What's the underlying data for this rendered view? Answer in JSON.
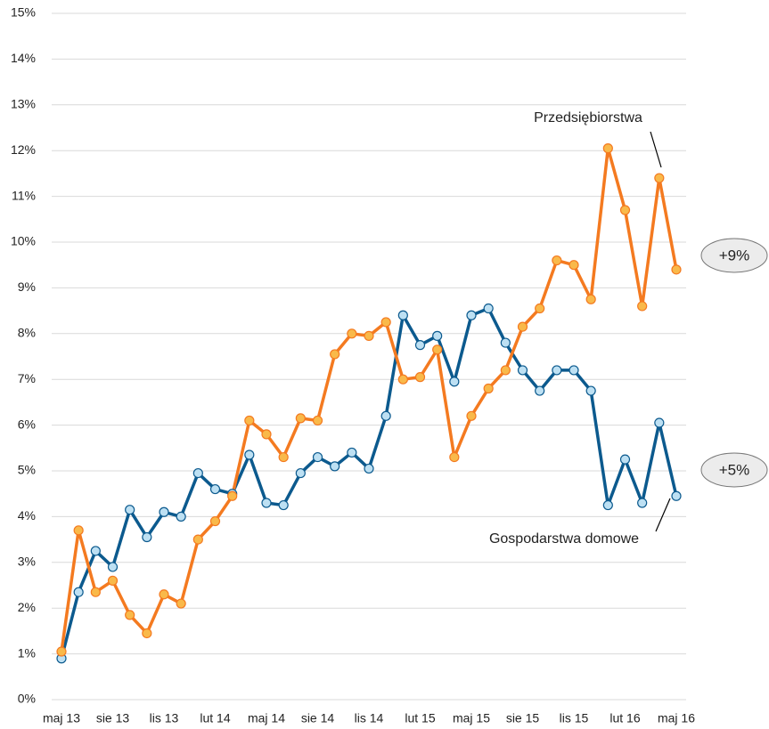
{
  "chart_data": {
    "type": "line",
    "categories": [
      "maj 13",
      null,
      null,
      "sie 13",
      null,
      null,
      "lis 13",
      null,
      null,
      "lut 14",
      null,
      null,
      "maj 14",
      null,
      null,
      "sie 14",
      null,
      null,
      "lis 14",
      null,
      null,
      "lut 15",
      null,
      null,
      "maj 15",
      null,
      null,
      "sie 15",
      null,
      null,
      "lis 15",
      null,
      null,
      "lut 16",
      null,
      null,
      "maj 16"
    ],
    "series": [
      {
        "name": "Gospodarstwa domowe",
        "color": "#0c5a8e",
        "marker_color": "#bde0f3",
        "values": [
          0.9,
          2.35,
          3.25,
          2.9,
          4.15,
          3.55,
          4.1,
          4.0,
          4.95,
          4.6,
          4.5,
          5.35,
          4.3,
          4.25,
          4.95,
          5.3,
          5.1,
          5.4,
          5.05,
          6.2,
          8.4,
          7.75,
          7.95,
          6.95,
          8.4,
          8.55,
          7.8,
          7.2,
          6.75,
          7.2,
          7.2,
          6.75,
          4.25,
          5.25,
          4.3,
          6.05,
          4.45
        ]
      },
      {
        "name": "Przedsiębiorstwa",
        "color": "#f47a20",
        "marker_color": "#f9b94a",
        "values": [
          1.05,
          3.7,
          2.35,
          2.6,
          1.85,
          1.45,
          2.3,
          2.1,
          3.5,
          3.9,
          4.45,
          6.1,
          5.8,
          5.3,
          6.15,
          6.1,
          7.55,
          8.0,
          7.95,
          8.25,
          7.0,
          7.05,
          7.65,
          5.3,
          6.2,
          6.8,
          7.2,
          8.15,
          8.55,
          9.6,
          9.5,
          8.75,
          12.05,
          10.7,
          8.6,
          11.4,
          9.4
        ]
      }
    ],
    "annotations": [
      "+9%",
      "+5%"
    ],
    "ylim": [
      0,
      15
    ],
    "yticks": [
      {
        "value": 0,
        "label": "0%"
      },
      {
        "value": 1,
        "label": "1%"
      },
      {
        "value": 2,
        "label": "2%"
      },
      {
        "value": 3,
        "label": "3%"
      },
      {
        "value": 4,
        "label": "4%"
      },
      {
        "value": 5,
        "label": "5%"
      },
      {
        "value": 6,
        "label": "6%"
      },
      {
        "value": 7,
        "label": "7%"
      },
      {
        "value": 8,
        "label": "8%"
      },
      {
        "value": 9,
        "label": "9%"
      },
      {
        "value": 10,
        "label": "10%"
      },
      {
        "value": 11,
        "label": "11%"
      },
      {
        "value": 12,
        "label": "12%"
      },
      {
        "value": 13,
        "label": "13%"
      },
      {
        "value": 14,
        "label": "14%"
      },
      {
        "value": 15,
        "label": "15%"
      }
    ],
    "grid": true
  }
}
